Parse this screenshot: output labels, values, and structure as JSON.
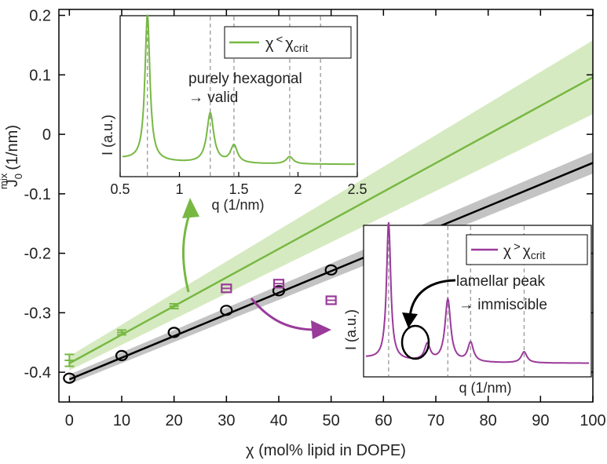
{
  "chart_data": [
    {
      "id": "main",
      "type": "scatter",
      "xlabel": "χ (mol% lipid in DOPE)",
      "ylabel_main": "J",
      "ylabel_sub": "0",
      "ylabel_sup": "mix",
      "ylabel_unit": "(1/nm)",
      "xlim": [
        -2,
        100
      ],
      "ylim": [
        -0.45,
        0.21
      ],
      "xticks": [
        0,
        10,
        20,
        30,
        40,
        50,
        60,
        70,
        80,
        90,
        100
      ],
      "yticks": [
        -0.4,
        -0.3,
        -0.2,
        -0.1,
        0,
        0.1,
        0.2
      ],
      "ytick_labels": [
        "-0.4",
        "-0.3",
        "-0.2",
        "-0.1",
        "0",
        "0.1",
        "0.2"
      ],
      "xtick_labels": [
        "0",
        "10",
        "20",
        "30",
        "40",
        "50",
        "60",
        "70",
        "80",
        "90",
        "100"
      ],
      "fits": [
        {
          "color": "#77b843",
          "band": "#cfe6b6",
          "x": [
            0,
            100
          ],
          "y": [
            -0.385,
            0.096
          ],
          "band_halfwidth": [
            0.012,
            0.062
          ]
        },
        {
          "color": "#000000",
          "band": "#b8b8b8",
          "x": [
            0,
            100
          ],
          "y": [
            -0.412,
            -0.048
          ],
          "band_halfwidth": [
            0.008,
            0.018
          ]
        }
      ],
      "series": [
        {
          "marker": "errorbar",
          "color": "#77b843",
          "x": [
            0,
            10,
            20
          ],
          "y": [
            -0.38,
            -0.333,
            -0.289
          ],
          "err": [
            0.01,
            0.004,
            0.004
          ]
        },
        {
          "marker": "circle",
          "color": "#000000",
          "x": [
            0,
            10,
            20,
            30,
            40,
            50
          ],
          "y": [
            -0.41,
            -0.372,
            -0.333,
            -0.296,
            -0.263,
            -0.228
          ]
        },
        {
          "marker": "square",
          "color": "#9a3a9a",
          "x": [
            30,
            40,
            50
          ],
          "y": [
            -0.259,
            -0.251,
            -0.279
          ]
        }
      ]
    },
    {
      "id": "inset-hexagonal",
      "type": "line",
      "xlabel": "q (1/nm)",
      "ylabel": "I (a.u.)",
      "xlim": [
        0.5,
        2.5
      ],
      "xticks": [
        0.5,
        1,
        1.5,
        2,
        2.5
      ],
      "xtick_labels": [
        "0.5",
        "1",
        "1.5",
        "2",
        "2.5"
      ],
      "legend": {
        "label_main": "χ",
        "label_sym": "<",
        "label_rhs": "χ",
        "label_sub": "crit",
        "placement": "top-right"
      },
      "annotation": [
        "purely hexagonal",
        "→ valid"
      ],
      "peak_positions": [
        0.73,
        1.26,
        1.46,
        1.93,
        2.19
      ],
      "peak_heights": [
        1.0,
        0.34,
        0.12,
        0.05,
        0
      ],
      "color": "#77b843"
    },
    {
      "id": "inset-lamellar",
      "type": "line",
      "xlabel": "q (1/nm)",
      "ylabel": "I (a.u.)",
      "legend": {
        "label_main": "χ",
        "label_sym": ">",
        "label_rhs": "χ",
        "label_sub": "crit",
        "placement": "top-right"
      },
      "annotation": [
        "lamellar peak",
        "→ immiscible"
      ],
      "peak_positions": [
        0.72,
        1.24,
        1.44,
        1.91
      ],
      "peak_heights": [
        1.0,
        0.45,
        0.14,
        0.08
      ],
      "lamellar_peak": {
        "q": 1.06,
        "h": 0.12
      },
      "color": "#9a3a9a"
    }
  ]
}
